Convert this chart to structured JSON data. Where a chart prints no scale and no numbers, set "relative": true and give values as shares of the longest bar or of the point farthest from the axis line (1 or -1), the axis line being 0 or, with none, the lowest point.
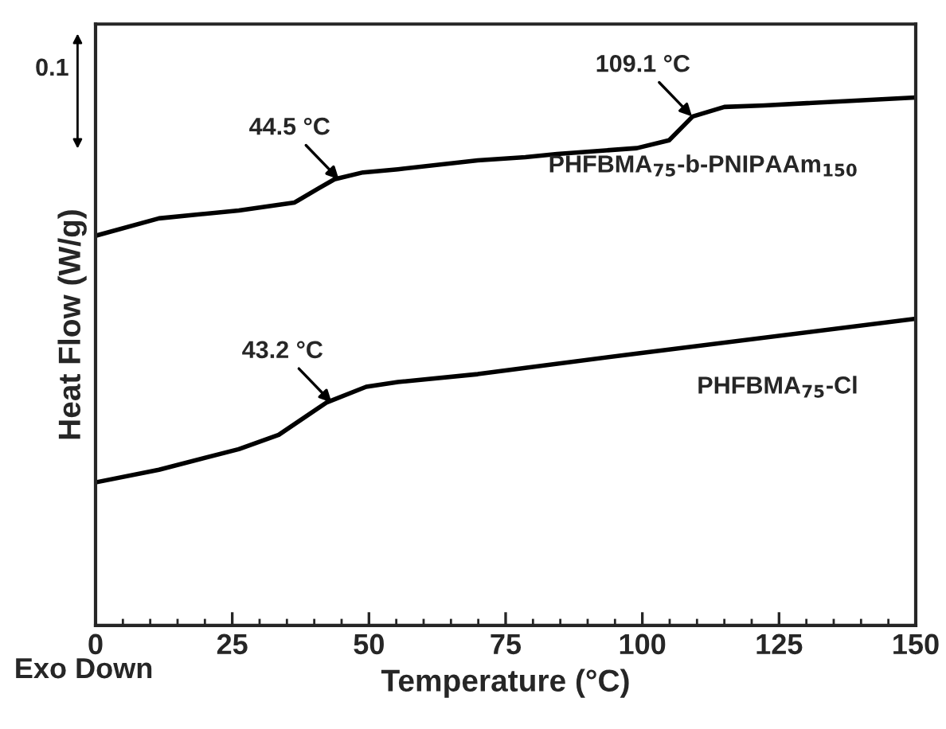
{
  "chart_data": {
    "type": "line",
    "relative": true,
    "xlabel": "Temperature (°C)",
    "ylabel": "Heat Flow (W/g)",
    "xlim": [
      0,
      150
    ],
    "xticks": [
      0,
      25,
      50,
      75,
      100,
      125,
      150
    ],
    "series": [
      {
        "name": "PHFBMA$_{75}$-b-PNIPAAm$_{150}$",
        "color": "#000000",
        "x": [
          0,
          11.6,
          26.2,
          36.4,
          40.8,
          43.7,
          48.9,
          55.3,
          69.9,
          78.6,
          84.4,
          99,
          104.9,
          109.2,
          115,
          122.3,
          150
        ],
        "values": [
          0.738,
          0.771,
          0.786,
          0.801,
          0.828,
          0.845,
          0.858,
          0.864,
          0.881,
          0.887,
          0.893,
          0.904,
          0.919,
          0.964,
          0.982,
          0.985,
          1.0
        ]
      },
      {
        "name": "PHFBMA$_{75}$-Cl",
        "color": "#000000",
        "x": [
          0,
          11.6,
          26.2,
          33.5,
          42.2,
          49.5,
          55.3,
          69.9,
          78.6,
          99,
          150
        ],
        "values": [
          0.271,
          0.295,
          0.334,
          0.361,
          0.422,
          0.452,
          0.461,
          0.476,
          0.488,
          0.515,
          0.581
        ]
      }
    ],
    "annotations": [
      {
        "text": "44.5 °C",
        "x": 44.5,
        "y": 0.845
      },
      {
        "text": "109.1 °C",
        "x": 109.1,
        "y": 0.964
      },
      {
        "text": "43.2 °C",
        "x": 43.2,
        "y": 0.422
      },
      "0.1",
      "Exo Down"
    ],
    "grid": false,
    "legend": false,
    "line_style": "solid",
    "marker": "none"
  }
}
